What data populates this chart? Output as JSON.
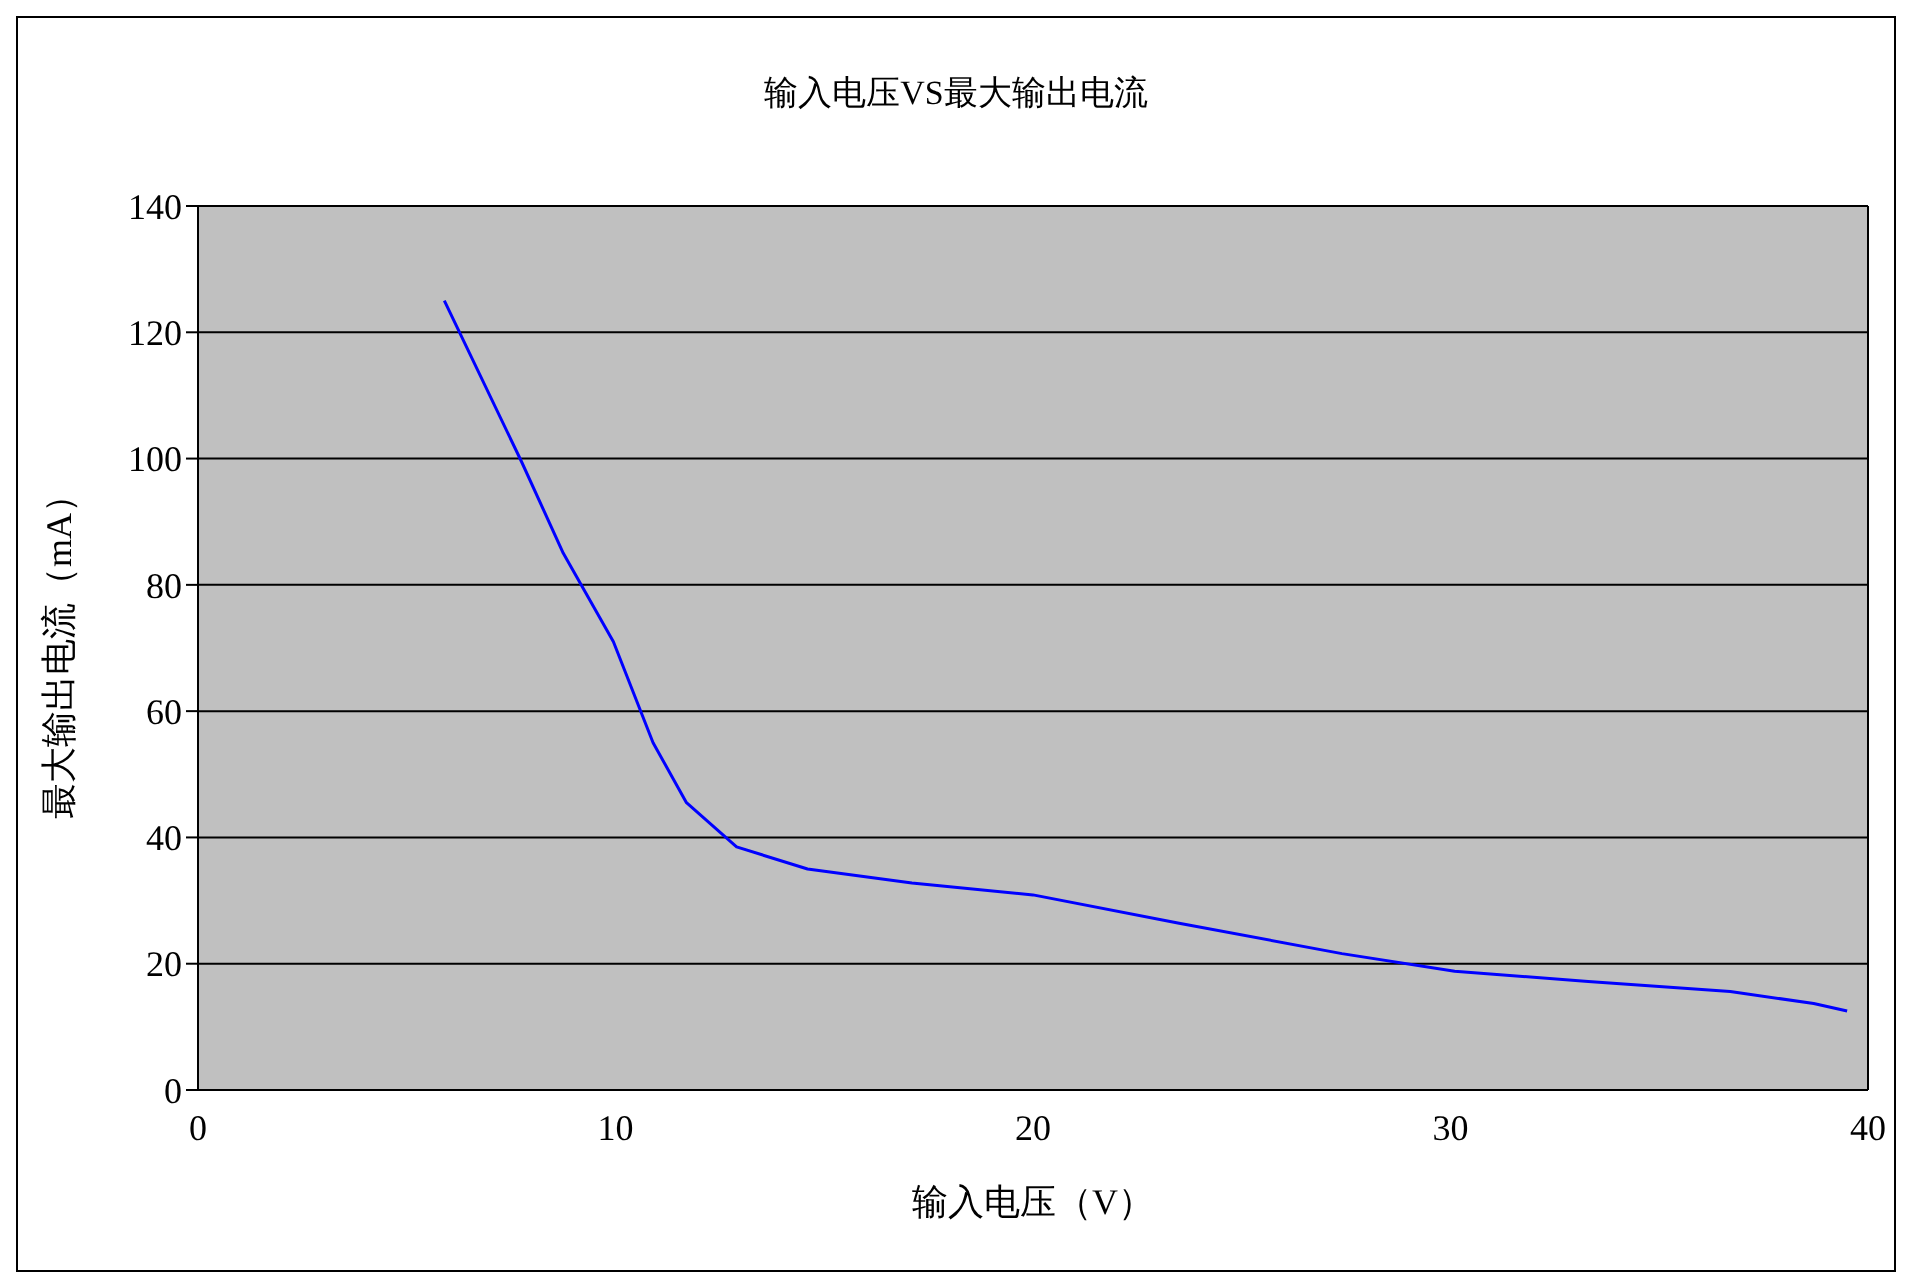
{
  "chart_data": {
    "type": "line",
    "title": "输入电压VS最大输出电流",
    "xlabel": "输入电压（V）",
    "ylabel": "最大输出电流（mA）",
    "xlim": [
      0,
      40
    ],
    "xticks": [
      0,
      10,
      20,
      30,
      40
    ],
    "ylim": [
      0,
      140
    ],
    "yticks": [
      0,
      20,
      40,
      60,
      80,
      100,
      120,
      140
    ],
    "grid": "y",
    "marker": "none",
    "line_style": "solid",
    "legend": false,
    "series": [
      {
        "color": "#0000ff",
        "x": [
          5.9,
          7.75,
          8.75,
          9.95,
          10.9,
          11.7,
          12.9,
          14.6,
          17.1,
          20,
          23.5,
          27.4,
          30.1,
          33.3,
          36.7,
          38.7,
          39.5
        ],
        "values": [
          125,
          99.5,
          85,
          71,
          55,
          45.5,
          38.5,
          35,
          32.8,
          30.9,
          26.4,
          21.6,
          18.8,
          17.2,
          15.6,
          13.7,
          12.5
        ]
      }
    ]
  }
}
